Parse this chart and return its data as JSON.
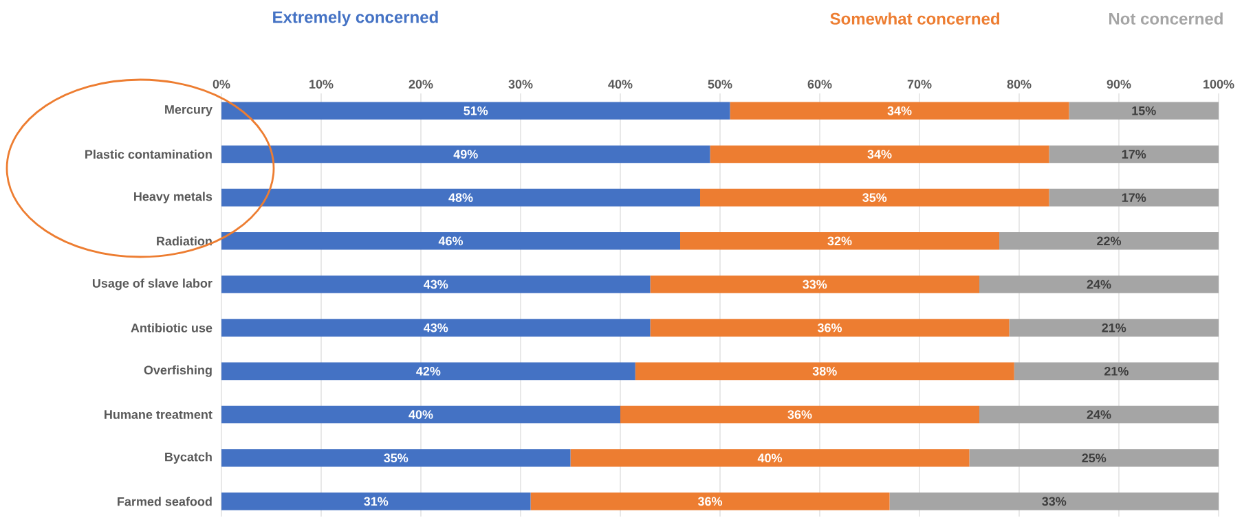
{
  "chart_data": {
    "type": "bar",
    "orientation": "horizontal",
    "stacked": true,
    "categories": [
      "Mercury",
      "Plastic contamination",
      "Heavy metals",
      "Radiation",
      "Usage of slave labor",
      "Antibiotic use",
      "Overfishing",
      "Humane treatment",
      "Bycatch",
      "Farmed seafood"
    ],
    "series": [
      {
        "name": "Extremely concerned",
        "color": "#4472c4",
        "values": [
          51,
          49,
          48,
          46,
          43,
          43,
          41.5,
          40,
          35,
          31
        ],
        "value_labels": [
          "51%",
          "49%",
          "48%",
          "46%",
          "43%",
          "43%",
          "42%",
          "40%",
          "35%",
          "31%"
        ]
      },
      {
        "name": "Somewhat concerned",
        "color": "#ed7d31",
        "values": [
          34,
          34,
          35,
          32,
          33,
          36,
          38,
          36,
          40,
          36
        ],
        "value_labels": [
          "34%",
          "34%",
          "35%",
          "32%",
          "33%",
          "36%",
          "38%",
          "36%",
          "40%",
          "36%"
        ]
      },
      {
        "name": "Not concerned",
        "color": "#a5a5a5",
        "values": [
          15,
          17,
          17,
          22,
          24,
          21,
          20.5,
          24,
          25,
          33
        ],
        "value_labels": [
          "15%",
          "17%",
          "17%",
          "22%",
          "24%",
          "21%",
          "21%",
          "24%",
          "25%",
          "33%"
        ]
      }
    ],
    "xlim": [
      0,
      100
    ],
    "xticks": [
      {
        "value": 0,
        "label": "0%"
      },
      {
        "value": 10,
        "label": "10%"
      },
      {
        "value": 20,
        "label": "20%"
      },
      {
        "value": 30,
        "label": "30%"
      },
      {
        "value": 40,
        "label": "40%"
      },
      {
        "value": 50,
        "label": "50%"
      },
      {
        "value": 60,
        "label": "60%"
      },
      {
        "value": 70,
        "label": "70%"
      },
      {
        "value": 80,
        "label": "80%"
      },
      {
        "value": 90,
        "label": "90%"
      },
      {
        "value": 100,
        "label": "100%"
      }
    ],
    "grid": "x",
    "legend": "top"
  }
}
